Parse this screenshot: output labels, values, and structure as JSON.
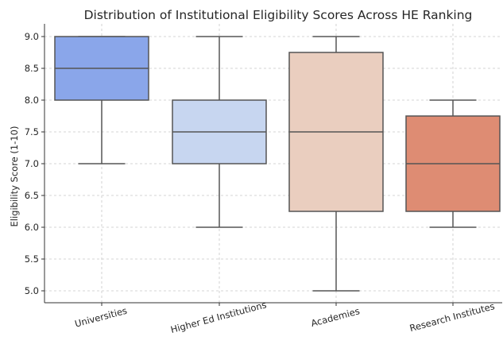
{
  "chart_data": {
    "type": "box",
    "title": "Distribution of Institutional Eligibility Scores Across HE Ranking",
    "xlabel": "",
    "ylabel": "Eligibility Score (1-10)",
    "ylim": [
      4.9,
      9.1
    ],
    "yticks": [
      "5.0",
      "5.5",
      "6.0",
      "6.5",
      "7.0",
      "7.5",
      "8.0",
      "8.5",
      "9.0"
    ],
    "grid": "y-dashed",
    "categories": [
      "Universities",
      "Higher Ed Institutions",
      "Academies",
      "Research Institutes"
    ],
    "boxes": [
      {
        "category": "Universities",
        "min": 7.0,
        "q1": 8.0,
        "median": 8.5,
        "q3": 9.0,
        "max": 9.0,
        "color": "#8aa6ea"
      },
      {
        "category": "Higher Ed Institutions",
        "min": 6.0,
        "q1": 7.0,
        "median": 7.5,
        "q3": 8.0,
        "max": 9.0,
        "color": "#c7d6f0"
      },
      {
        "category": "Academies",
        "min": 5.0,
        "q1": 6.25,
        "median": 7.5,
        "q3": 8.75,
        "max": 9.0,
        "color": "#eacebf"
      },
      {
        "category": "Research Institutes",
        "min": 6.0,
        "q1": 6.25,
        "median": 7.0,
        "q3": 7.75,
        "max": 8.0,
        "color": "#de8c73"
      }
    ]
  }
}
